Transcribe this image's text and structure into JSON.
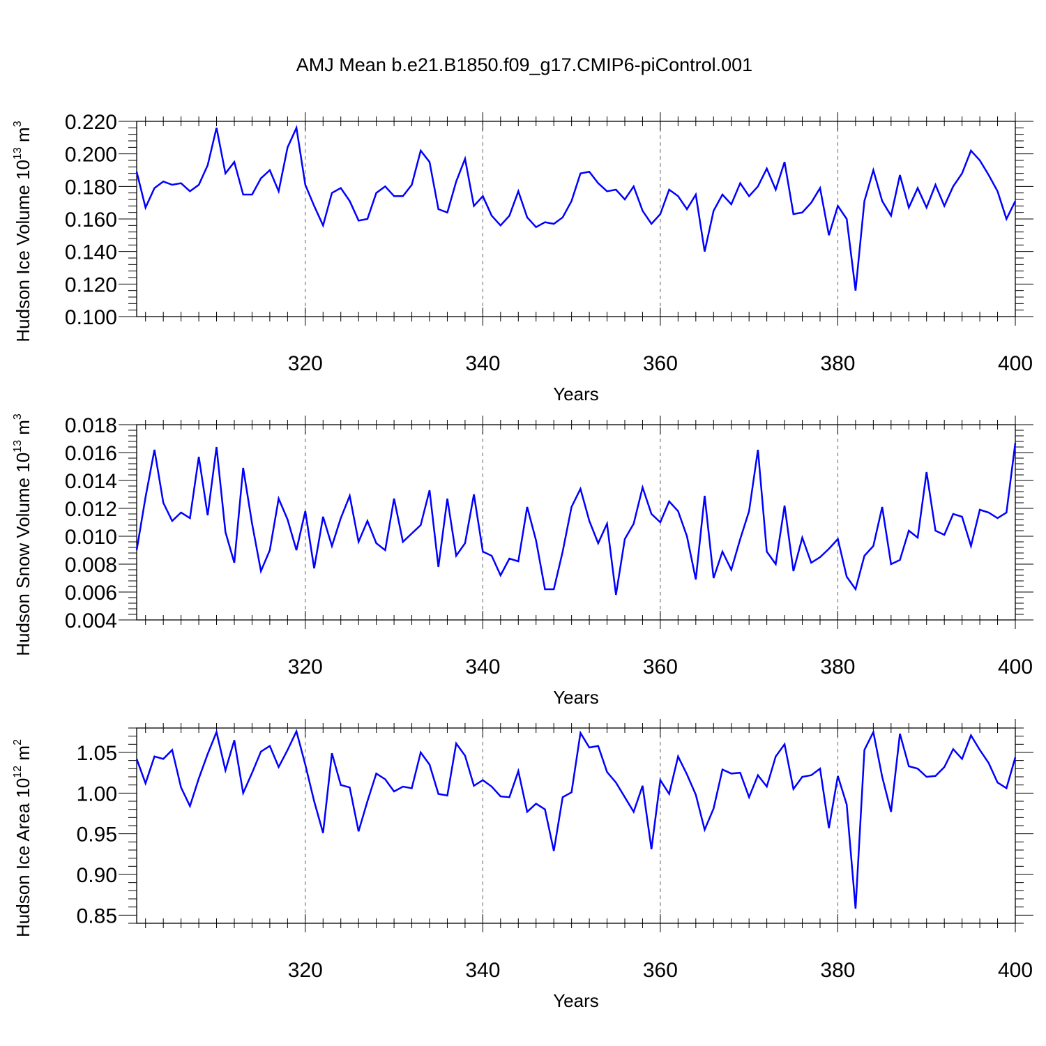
{
  "title": "AMJ Mean b.e21.B1850.f09_g17.CMIP6-piControl.001",
  "colors": {
    "line": "#0000ff",
    "axis": "#000000",
    "grid": "#7f7f7f"
  },
  "chart_data": [
    {
      "type": "line",
      "name": "ice-volume",
      "ylabel": {
        "prefix": "Hudson Ice Volume 10",
        "exp": "13",
        "unit": " m",
        "unit_exp": "3"
      },
      "xlabel": "Years",
      "xlim": [
        301,
        400
      ],
      "ylim": [
        0.1,
        0.22
      ],
      "xticks": [
        320,
        340,
        360,
        380,
        400
      ],
      "xtick_labels": [
        "320",
        "340",
        "360",
        "380",
        "400"
      ],
      "yticks": [
        0.1,
        0.12,
        0.14,
        0.16,
        0.18,
        0.2,
        0.22
      ],
      "ytick_labels": [
        "0.100",
        "0.120",
        "0.140",
        "0.160",
        "0.180",
        "0.200",
        "0.220"
      ],
      "x_start": 301,
      "values": [
        0.189,
        0.167,
        0.179,
        0.183,
        0.181,
        0.182,
        0.177,
        0.181,
        0.193,
        0.216,
        0.188,
        0.195,
        0.175,
        0.175,
        0.185,
        0.19,
        0.177,
        0.204,
        0.216,
        0.181,
        0.168,
        0.156,
        0.176,
        0.179,
        0.171,
        0.159,
        0.16,
        0.176,
        0.18,
        0.174,
        0.174,
        0.181,
        0.202,
        0.195,
        0.166,
        0.164,
        0.183,
        0.197,
        0.168,
        0.174,
        0.162,
        0.156,
        0.162,
        0.177,
        0.161,
        0.155,
        0.158,
        0.157,
        0.161,
        0.171,
        0.188,
        0.189,
        0.182,
        0.177,
        0.178,
        0.172,
        0.18,
        0.165,
        0.157,
        0.163,
        0.178,
        0.174,
        0.166,
        0.175,
        0.14,
        0.165,
        0.175,
        0.169,
        0.182,
        0.174,
        0.18,
        0.191,
        0.178,
        0.195,
        0.163,
        0.164,
        0.17,
        0.179,
        0.15,
        0.168,
        0.16,
        0.116,
        0.171,
        0.19,
        0.171,
        0.162,
        0.187,
        0.167,
        0.179,
        0.167,
        0.181,
        0.168,
        0.18,
        0.188,
        0.202,
        0.196,
        0.187,
        0.177,
        0.16,
        0.171
      ]
    },
    {
      "type": "line",
      "name": "snow-volume",
      "ylabel": {
        "prefix": "Hudson Snow Volume 10",
        "exp": "13",
        "unit": " m",
        "unit_exp": "3"
      },
      "xlabel": "Years",
      "xlim": [
        301,
        400
      ],
      "ylim": [
        0.004,
        0.018
      ],
      "xticks": [
        320,
        340,
        360,
        380,
        400
      ],
      "xtick_labels": [
        "320",
        "340",
        "360",
        "380",
        "400"
      ],
      "yticks": [
        0.004,
        0.006,
        0.008,
        0.01,
        0.012,
        0.014,
        0.016,
        0.018
      ],
      "ytick_labels": [
        "0.004",
        "0.006",
        "0.008",
        "0.010",
        "0.012",
        "0.014",
        "0.016",
        "0.018"
      ],
      "x_start": 301,
      "values": [
        0.009,
        0.0128,
        0.0162,
        0.0124,
        0.0111,
        0.0117,
        0.0113,
        0.0157,
        0.0115,
        0.0164,
        0.0103,
        0.0081,
        0.0149,
        0.0109,
        0.0075,
        0.009,
        0.0127,
        0.0112,
        0.009,
        0.0118,
        0.0077,
        0.0114,
        0.0093,
        0.0113,
        0.0129,
        0.0096,
        0.0111,
        0.0095,
        0.009,
        0.0127,
        0.0096,
        0.0102,
        0.0108,
        0.0133,
        0.0078,
        0.0127,
        0.0086,
        0.0095,
        0.013,
        0.0089,
        0.0086,
        0.0072,
        0.0084,
        0.0082,
        0.0121,
        0.0097,
        0.0062,
        0.0062,
        0.0089,
        0.0121,
        0.0134,
        0.0111,
        0.0095,
        0.0109,
        0.0058,
        0.0098,
        0.0109,
        0.0135,
        0.0116,
        0.011,
        0.0125,
        0.0118,
        0.01,
        0.0069,
        0.0129,
        0.007,
        0.0089,
        0.0076,
        0.0098,
        0.0118,
        0.0162,
        0.0089,
        0.008,
        0.0122,
        0.0075,
        0.0099,
        0.0081,
        0.0085,
        0.0091,
        0.0098,
        0.0071,
        0.0062,
        0.0086,
        0.0093,
        0.0121,
        0.008,
        0.0083,
        0.0104,
        0.0099,
        0.0146,
        0.0104,
        0.0101,
        0.0116,
        0.0114,
        0.0093,
        0.0119,
        0.0117,
        0.0113,
        0.0117,
        0.0167
      ]
    },
    {
      "type": "line",
      "name": "ice-area",
      "ylabel": {
        "prefix": "Hudson Ice Area 10",
        "exp": "12",
        "unit": " m",
        "unit_exp": "2"
      },
      "xlabel": "Years",
      "xlim": [
        301,
        400
      ],
      "ylim": [
        0.84,
        1.08
      ],
      "xticks": [
        320,
        340,
        360,
        380,
        400
      ],
      "xtick_labels": [
        "320",
        "340",
        "360",
        "380",
        "400"
      ],
      "yticks": [
        0.85,
        0.9,
        0.95,
        1.0,
        1.05
      ],
      "ytick_labels": [
        "0.85",
        "0.90",
        "0.95",
        "1.00",
        "1.05"
      ],
      "x_start": 301,
      "values": [
        1.042,
        1.012,
        1.045,
        1.042,
        1.053,
        1.007,
        0.984,
        1.018,
        1.048,
        1.075,
        1.028,
        1.065,
        1.0,
        1.025,
        1.051,
        1.058,
        1.032,
        1.053,
        1.076,
        1.035,
        0.99,
        0.951,
        1.049,
        1.01,
        1.007,
        0.953,
        0.99,
        1.024,
        1.017,
        1.002,
        1.008,
        1.006,
        1.05,
        1.035,
        0.999,
        0.997,
        1.061,
        1.046,
        1.009,
        1.016,
        1.008,
        0.996,
        0.995,
        1.027,
        0.977,
        0.987,
        0.98,
        0.929,
        0.995,
        1.001,
        1.074,
        1.056,
        1.058,
        1.026,
        1.013,
        0.995,
        0.977,
        1.009,
        0.931,
        1.016,
        0.999,
        1.045,
        1.023,
        0.998,
        0.955,
        0.981,
        1.029,
        1.024,
        1.025,
        0.995,
        1.022,
        1.008,
        1.045,
        1.06,
        1.005,
        1.02,
        1.022,
        1.03,
        0.957,
        1.021,
        0.986,
        0.858,
        1.053,
        1.075,
        1.02,
        0.977,
        1.073,
        1.033,
        1.03,
        1.02,
        1.021,
        1.032,
        1.054,
        1.042,
        1.071,
        1.053,
        1.037,
        1.013,
        1.006,
        1.044
      ]
    }
  ]
}
